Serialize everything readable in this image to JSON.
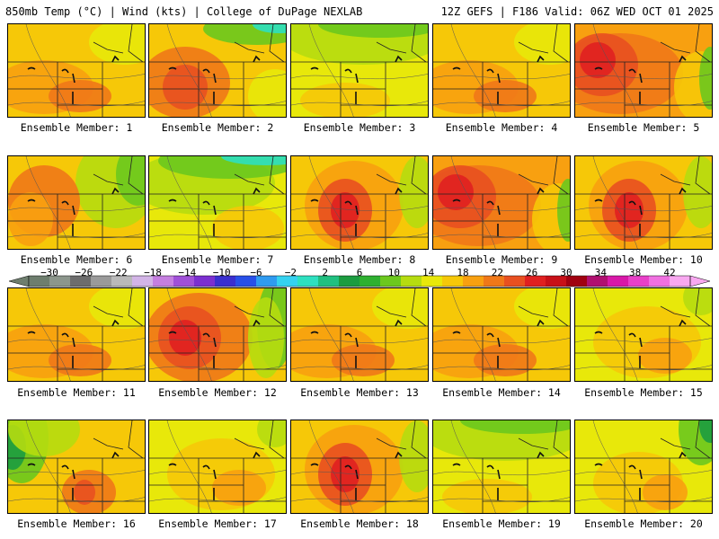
{
  "header": {
    "left_title": "850mb Temp (°C) | Wind (kts) | College of DuPage NEXLAB",
    "right_title": "12Z GEFS | F186 Valid: 06Z WED OCT 01 2025"
  },
  "colorbar": {
    "labels": [
      "−30",
      "−26",
      "−22",
      "−18",
      "−14",
      "−10",
      "−6",
      "−2",
      "2",
      "6",
      "10",
      "14",
      "18",
      "22",
      "26",
      "30",
      "34",
      "38",
      "42"
    ],
    "colors": [
      "#6e7e6e",
      "#8c968c",
      "#6d6d6d",
      "#9a9a9a",
      "#b9b9b9",
      "#d2b4e6",
      "#c57fe0",
      "#a050d8",
      "#7b2fd0",
      "#3a2fcf",
      "#2850e8",
      "#2f9bf0",
      "#35d2f0",
      "#2ee0c0",
      "#20c080",
      "#1c9c40",
      "#2eb030",
      "#6cc81e",
      "#b6dc10",
      "#e8e80a",
      "#f6c808",
      "#f8a010",
      "#f07818",
      "#e85020",
      "#e02020",
      "#c81018",
      "#a00010",
      "#b01070",
      "#d818a8",
      "#e840c8",
      "#f070e0",
      "#f8a8f0"
    ]
  },
  "members": [
    {
      "label": "Ensemble Member: 1",
      "theme": "warm"
    },
    {
      "label": "Ensemble Member: 2",
      "theme": "hot-west-cool-north"
    },
    {
      "label": "Ensemble Member: 3",
      "theme": "cool"
    },
    {
      "label": "Ensemble Member: 4",
      "theme": "warm"
    },
    {
      "label": "Ensemble Member: 5",
      "theme": "hot"
    },
    {
      "label": "Ensemble Member: 6",
      "theme": "warm-cool-east"
    },
    {
      "label": "Ensemble Member: 7",
      "theme": "cool-north"
    },
    {
      "label": "Ensemble Member: 8",
      "theme": "hot-center"
    },
    {
      "label": "Ensemble Member: 9",
      "theme": "hot"
    },
    {
      "label": "Ensemble Member: 10",
      "theme": "hot-center"
    },
    {
      "label": "Ensemble Member: 11",
      "theme": "warm"
    },
    {
      "label": "Ensemble Member: 12",
      "theme": "hot-west-cool-east"
    },
    {
      "label": "Ensemble Member: 13",
      "theme": "warm"
    },
    {
      "label": "Ensemble Member: 14",
      "theme": "warm"
    },
    {
      "label": "Ensemble Member: 15",
      "theme": "mild"
    },
    {
      "label": "Ensemble Member: 16",
      "theme": "cool-west"
    },
    {
      "label": "Ensemble Member: 17",
      "theme": "mild"
    },
    {
      "label": "Ensemble Member: 18",
      "theme": "hot-center"
    },
    {
      "label": "Ensemble Member: 19",
      "theme": "cool"
    },
    {
      "label": "Ensemble Member: 20",
      "theme": "mild-cool-east"
    }
  ]
}
